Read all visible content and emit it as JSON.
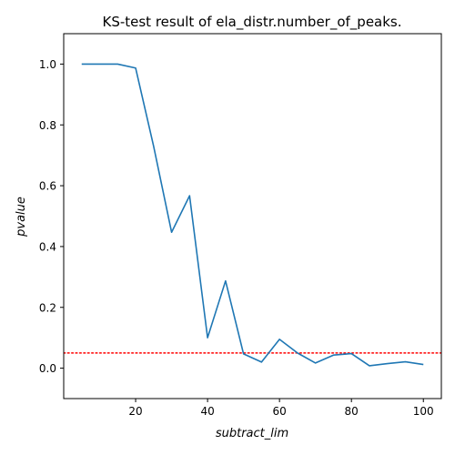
{
  "chart_data": {
    "type": "line",
    "title": "KS-test result of ela_distr.number_of_peaks.",
    "xlabel": "subtract_lim",
    "ylabel": "pvalue",
    "xlim": [
      0,
      105
    ],
    "ylim": [
      -0.1,
      1.1
    ],
    "xticks": [
      20,
      40,
      60,
      80,
      100
    ],
    "yticks": [
      0.0,
      0.2,
      0.4,
      0.6,
      0.8,
      1.0
    ],
    "xtick_labels": [
      "20",
      "40",
      "60",
      "80",
      "100"
    ],
    "ytick_labels": [
      "0.0",
      "0.2",
      "0.4",
      "0.6",
      "0.8",
      "1.0"
    ],
    "grid": false,
    "series": [
      {
        "color": "#1f77b4",
        "x": [
          5,
          10,
          15,
          20,
          25,
          30,
          35,
          40,
          45,
          50,
          55,
          60,
          65,
          70,
          75,
          80,
          85,
          90,
          95,
          100
        ],
        "values": [
          1.0,
          1.0,
          1.0,
          0.987,
          0.73,
          0.447,
          0.567,
          0.1,
          0.287,
          0.047,
          0.02,
          0.095,
          0.05,
          0.017,
          0.043,
          0.048,
          0.008,
          0.015,
          0.021,
          0.012
        ]
      }
    ],
    "reference_line": {
      "y": 0.05,
      "color": "#ff0000",
      "style": "dotted"
    }
  }
}
